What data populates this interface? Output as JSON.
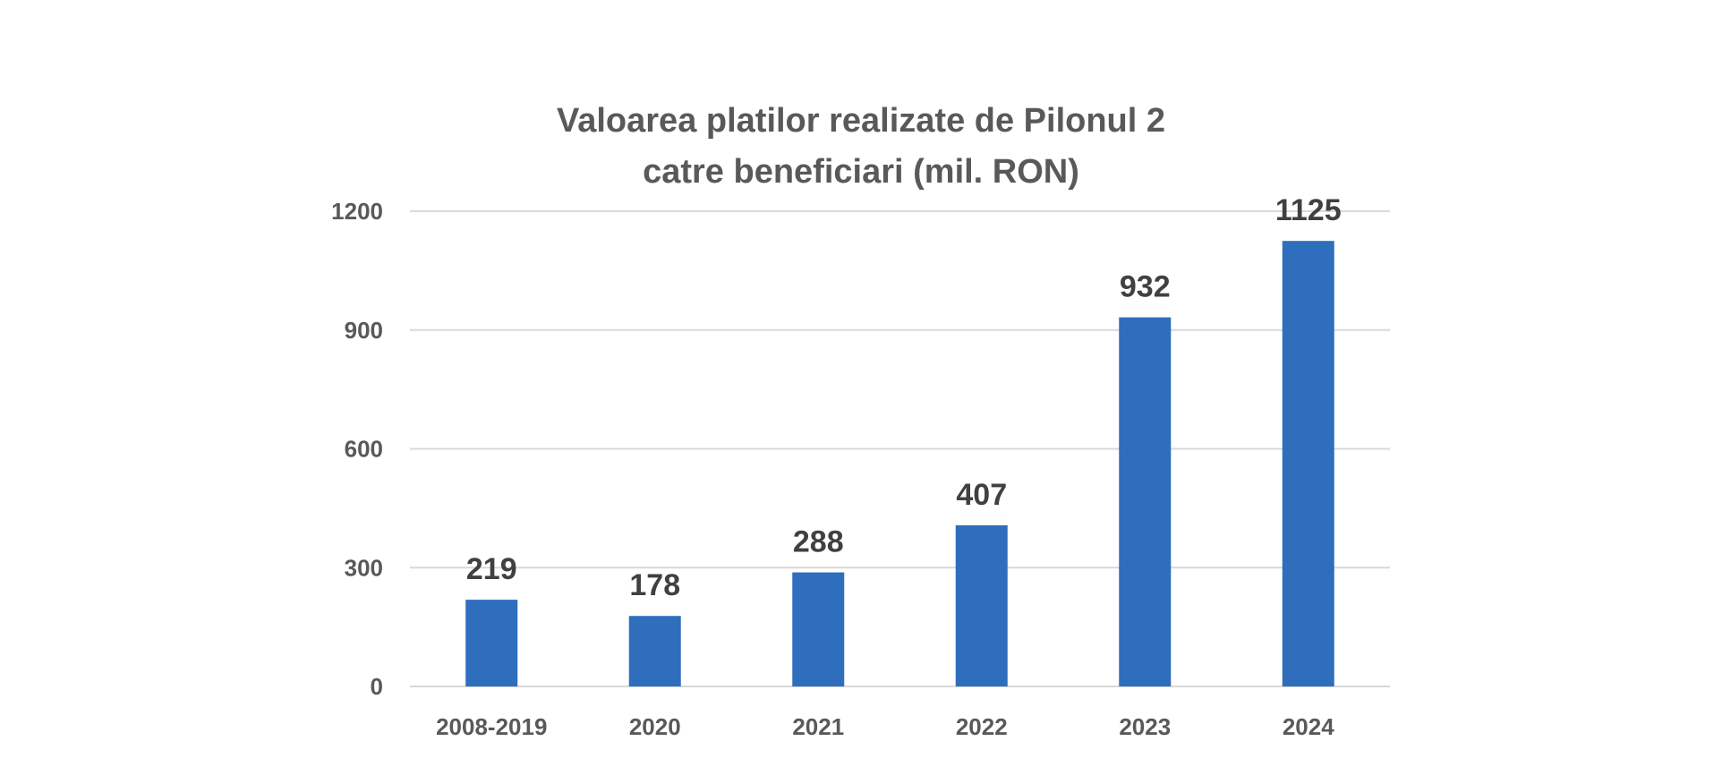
{
  "chart_data": {
    "type": "bar",
    "title_lines": [
      "Valoarea platilor realizate de Pilonul 2",
      "catre beneficiari (mil. RON)"
    ],
    "categories": [
      "2008-2019",
      "2020",
      "2021",
      "2022",
      "2023",
      "2024"
    ],
    "values": [
      219,
      178,
      288,
      407,
      932,
      1125
    ],
    "data_labels": [
      "219",
      "178",
      "288",
      "407",
      "932",
      "1125"
    ],
    "y_ticks": [
      0,
      300,
      600,
      900,
      1200
    ],
    "y_tick_labels": [
      "0",
      "300",
      "600",
      "900",
      "1200"
    ],
    "ylim": [
      0,
      1200
    ],
    "xlabel": "",
    "ylabel": "",
    "grid": true,
    "legend": "none",
    "bar_color": "#2e6ebd",
    "gridline_color": "#d9d9d9"
  }
}
